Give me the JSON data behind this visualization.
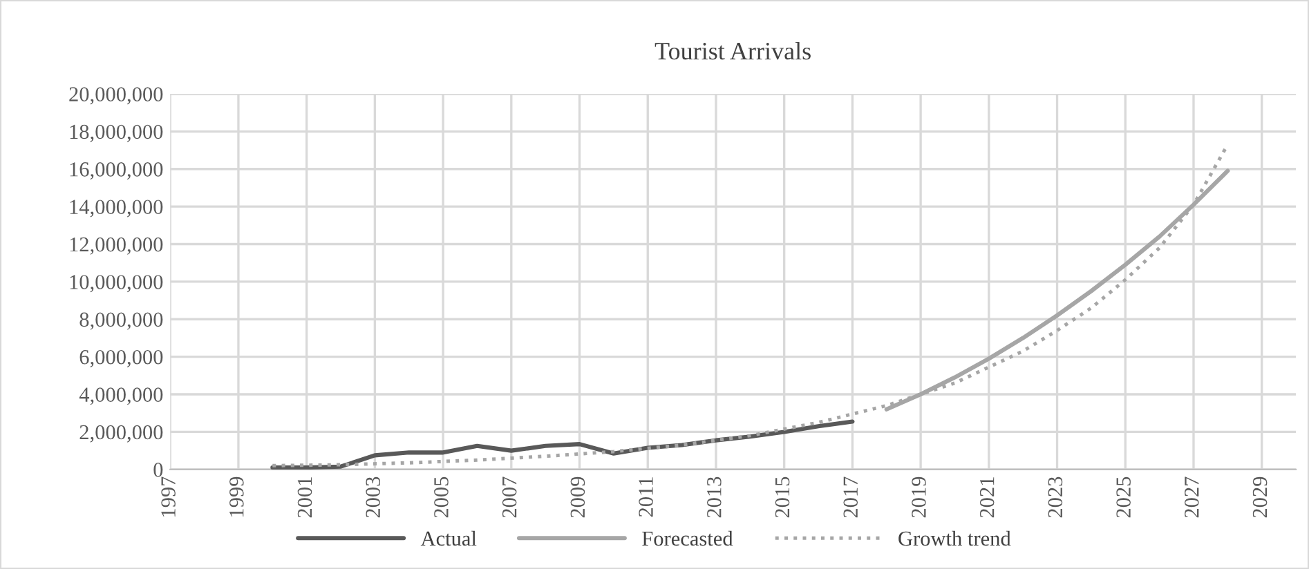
{
  "chart_data": {
    "type": "line",
    "title": "Tourist Arrivals",
    "xlim": [
      1997,
      2030
    ],
    "xticks": [
      1997,
      1999,
      2001,
      2003,
      2005,
      2007,
      2009,
      2011,
      2013,
      2015,
      2017,
      2019,
      2021,
      2023,
      2025,
      2027,
      2029
    ],
    "ylim": [
      0,
      20000000
    ],
    "yticks": [
      {
        "value": 0,
        "label": "0"
      },
      {
        "value": 2000000,
        "label": "2,000,000"
      },
      {
        "value": 4000000,
        "label": "4,000,000"
      },
      {
        "value": 6000000,
        "label": "6,000,000"
      },
      {
        "value": 8000000,
        "label": "8,000,000"
      },
      {
        "value": 10000000,
        "label": "10,000,000"
      },
      {
        "value": 12000000,
        "label": "12,000,000"
      },
      {
        "value": 14000000,
        "label": "14,000,000"
      },
      {
        "value": 16000000,
        "label": "16,000,000"
      },
      {
        "value": 18000000,
        "label": "18,000,000"
      },
      {
        "value": 20000000,
        "label": "20,000,000"
      }
    ],
    "grid": true,
    "legend": "bottom",
    "marker": "none",
    "series": [
      {
        "name": "Actual",
        "color": "#595959",
        "line_style": "solid",
        "x": [
          2000,
          2001,
          2002,
          2003,
          2004,
          2005,
          2006,
          2007,
          2008,
          2009,
          2010,
          2011,
          2012,
          2013,
          2014,
          2015,
          2016,
          2017
        ],
        "values": [
          100000,
          100000,
          150000,
          750000,
          900000,
          900000,
          1250000,
          1000000,
          1250000,
          1350000,
          850000,
          1150000,
          1300000,
          1550000,
          1750000,
          2000000,
          2300000,
          2550000
        ]
      },
      {
        "name": "Forecasted",
        "color": "#a6a6a6",
        "line_style": "solid",
        "x": [
          2018,
          2019,
          2020,
          2021,
          2022,
          2023,
          2024,
          2025,
          2026,
          2027,
          2028
        ],
        "values": [
          3200000,
          4000000,
          4900000,
          5900000,
          7000000,
          8200000,
          9500000,
          10900000,
          12400000,
          14100000,
          15900000
        ]
      },
      {
        "name": "Growth trend",
        "color": "#a6a6a6",
        "line_style": "dotted",
        "x": [
          2000,
          2002,
          2004,
          2006,
          2008,
          2010,
          2012,
          2014,
          2016,
          2018,
          2020,
          2022,
          2023,
          2024,
          2025,
          2026,
          2027,
          2028
        ],
        "values": [
          200000,
          250000,
          350000,
          500000,
          700000,
          950000,
          1300000,
          1800000,
          2500000,
          3400000,
          4600000,
          6300000,
          7400000,
          8600000,
          10100000,
          11800000,
          14100000,
          17300000
        ]
      }
    ]
  }
}
